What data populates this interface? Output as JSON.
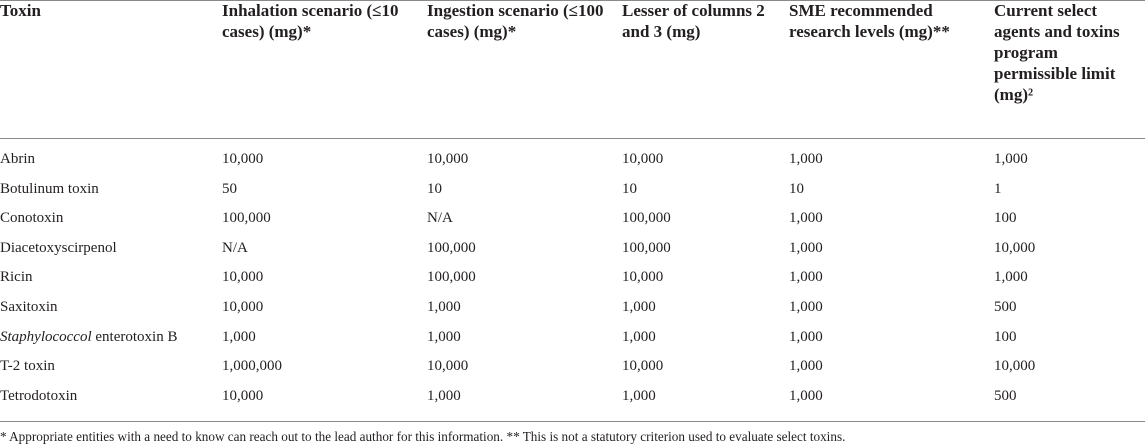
{
  "table": {
    "headers": [
      "Toxin",
      "Inhalation scenario (≤10 cases) (mg)*",
      "Ingestion scenario (≤100 cases) (mg)*",
      "Lesser of columns 2 and 3 (mg)",
      "SME recommended research levels (mg)**",
      "Current select agents and toxins program permissible limit (mg)²"
    ],
    "rows": [
      {
        "toxin": "Abrin",
        "toxin_italic": "",
        "toxin_rest": "",
        "inhalation": "10,000",
        "ingestion": "10,000",
        "lesser": "10,000",
        "sme": "1,000",
        "permissible": "1,000"
      },
      {
        "toxin": "Botulinum toxin",
        "toxin_italic": "",
        "toxin_rest": "",
        "inhalation": "50",
        "ingestion": "10",
        "lesser": "10",
        "sme": "10",
        "permissible": "1"
      },
      {
        "toxin": "Conotoxin",
        "toxin_italic": "",
        "toxin_rest": "",
        "inhalation": "100,000",
        "ingestion": "N/A",
        "lesser": "100,000",
        "sme": "1,000",
        "permissible": "100"
      },
      {
        "toxin": "Diacetoxyscirpenol",
        "toxin_italic": "",
        "toxin_rest": "",
        "inhalation": "N/A",
        "ingestion": "100,000",
        "lesser": "100,000",
        "sme": "1,000",
        "permissible": "10,000"
      },
      {
        "toxin": "Ricin",
        "toxin_italic": "",
        "toxin_rest": "",
        "inhalation": "10,000",
        "ingestion": "100,000",
        "lesser": "10,000",
        "sme": "1,000",
        "permissible": "1,000"
      },
      {
        "toxin": "Saxitoxin",
        "toxin_italic": "",
        "toxin_rest": "",
        "inhalation": "10,000",
        "ingestion": "1,000",
        "lesser": "1,000",
        "sme": "1,000",
        "permissible": "500"
      },
      {
        "toxin": "",
        "toxin_italic": "Staphylococcol",
        "toxin_rest": " enterotoxin B",
        "inhalation": "1,000",
        "ingestion": "1,000",
        "lesser": "1,000",
        "sme": "1,000",
        "permissible": "100"
      },
      {
        "toxin": "T-2 toxin",
        "toxin_italic": "",
        "toxin_rest": "",
        "inhalation": "1,000,000",
        "ingestion": "10,000",
        "lesser": "10,000",
        "sme": "1,000",
        "permissible": "10,000"
      },
      {
        "toxin": "Tetrodotoxin",
        "toxin_italic": "",
        "toxin_rest": "",
        "inhalation": "10,000",
        "ingestion": "1,000",
        "lesser": "1,000",
        "sme": "1,000",
        "permissible": "500"
      }
    ],
    "footnote": "* Appropriate entities with a need to know can reach out to the lead author for this information. ** This is not a statutory criterion used to evaluate select toxins."
  }
}
